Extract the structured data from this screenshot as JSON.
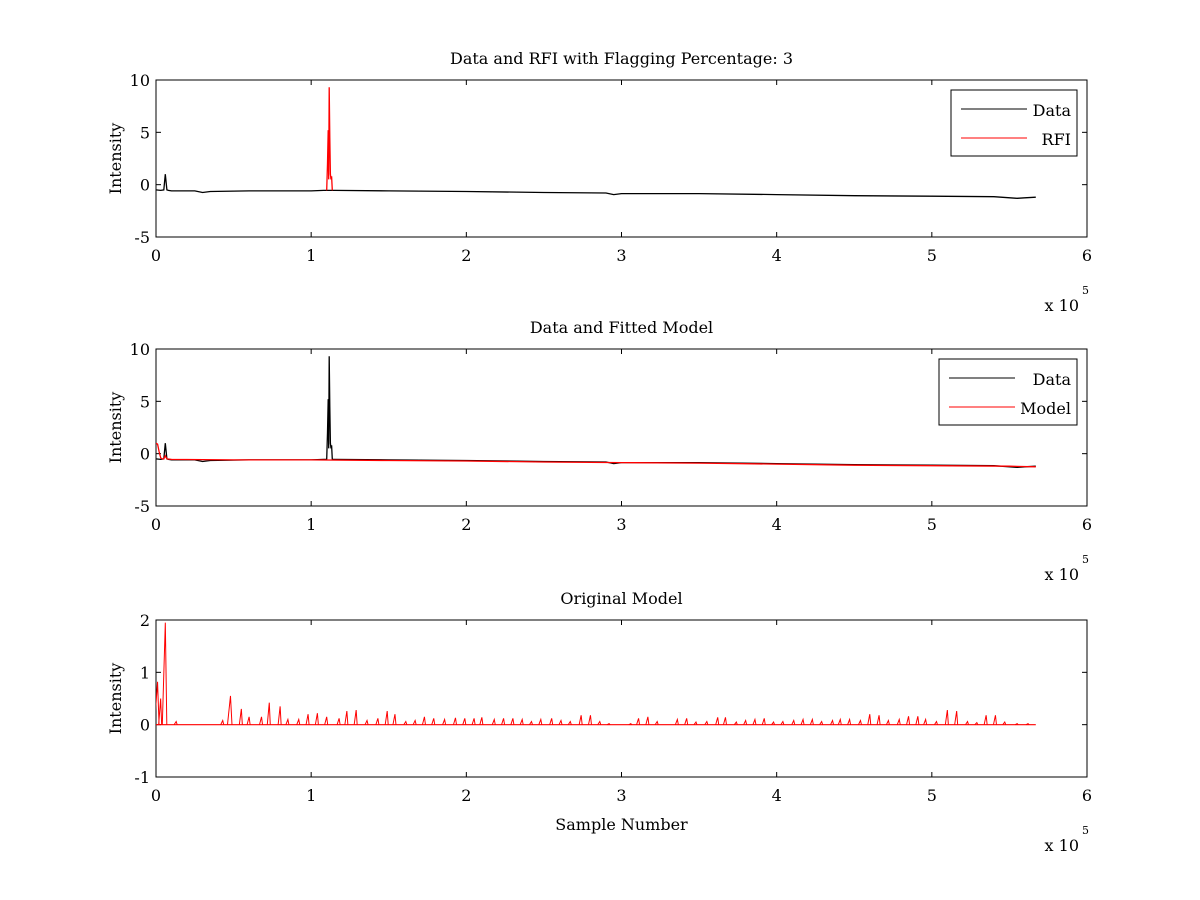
{
  "colors": {
    "data": "#000000",
    "rfi": "#ff0000",
    "model": "#ff0000",
    "axes": "#000000",
    "background": "#ffffff"
  },
  "chart_data": [
    {
      "type": "line",
      "title": "Data and RFI with Flagging Percentage: 3",
      "xlabel": "",
      "ylabel": "Intensity",
      "xlim": [
        0,
        600000
      ],
      "ylim": [
        -5,
        10
      ],
      "x_ticks": [
        0,
        1,
        2,
        3,
        4,
        5,
        6
      ],
      "y_ticks": [
        -5,
        0,
        5,
        10
      ],
      "x_exponent": {
        "base": "x 10",
        "power": "5"
      },
      "legend": {
        "position": "top-right",
        "entries": [
          "Data",
          "RFI"
        ]
      },
      "grid": false,
      "series": [
        {
          "name": "Data",
          "color": "#000000",
          "x": [
            0,
            3000,
            5000,
            6000,
            7000,
            8000,
            10000,
            25000,
            30000,
            35000,
            60000,
            100000,
            108000,
            115000,
            150000,
            200000,
            250000,
            290000,
            295000,
            300000,
            350000,
            400000,
            450000,
            500000,
            540000,
            555000,
            560000,
            567000
          ],
          "y": [
            -0.5,
            -0.55,
            -0.5,
            1.0,
            -0.5,
            -0.55,
            -0.6,
            -0.6,
            -0.75,
            -0.65,
            -0.6,
            -0.6,
            -0.55,
            -0.55,
            -0.6,
            -0.65,
            -0.75,
            -0.8,
            -0.95,
            -0.85,
            -0.85,
            -0.95,
            -1.05,
            -1.1,
            -1.15,
            -1.3,
            -1.25,
            -1.2
          ]
        },
        {
          "name": "RFI",
          "color": "#ff0000",
          "x": [
            110000,
            110500,
            111000,
            111300,
            111600,
            112000,
            112400,
            112800,
            113200,
            113600
          ],
          "y": [
            -0.55,
            2.0,
            5.2,
            0.5,
            9.3,
            4.5,
            1.0,
            0.5,
            0.8,
            -0.55
          ]
        }
      ]
    },
    {
      "type": "line",
      "title": "Data and Fitted Model",
      "xlabel": "",
      "ylabel": "Intensity",
      "xlim": [
        0,
        600000
      ],
      "ylim": [
        -5,
        10
      ],
      "x_ticks": [
        0,
        1,
        2,
        3,
        4,
        5,
        6
      ],
      "y_ticks": [
        -5,
        0,
        5,
        10
      ],
      "x_exponent": {
        "base": "x 10",
        "power": "5"
      },
      "legend": {
        "position": "top-right",
        "entries": [
          "Data",
          "Model"
        ]
      },
      "grid": false,
      "series": [
        {
          "name": "Data",
          "color": "#000000",
          "x": [
            0,
            3000,
            5000,
            6000,
            7000,
            8000,
            10000,
            25000,
            30000,
            35000,
            60000,
            100000,
            108000,
            110000,
            110500,
            111000,
            111300,
            111600,
            112000,
            112400,
            112800,
            113200,
            113600,
            115000,
            150000,
            200000,
            250000,
            290000,
            295000,
            300000,
            350000,
            400000,
            450000,
            500000,
            540000,
            555000,
            560000,
            567000
          ],
          "y": [
            -0.5,
            -0.55,
            -0.5,
            1.0,
            -0.5,
            -0.55,
            -0.6,
            -0.6,
            -0.75,
            -0.65,
            -0.6,
            -0.6,
            -0.55,
            -0.55,
            2.0,
            5.2,
            0.5,
            9.3,
            4.5,
            1.0,
            0.5,
            0.8,
            -0.55,
            -0.55,
            -0.6,
            -0.65,
            -0.75,
            -0.8,
            -0.95,
            -0.85,
            -0.85,
            -0.95,
            -1.05,
            -1.1,
            -1.15,
            -1.3,
            -1.25,
            -1.2
          ]
        },
        {
          "name": "Model",
          "color": "#ff0000",
          "x": [
            0,
            1000,
            2000,
            3000,
            4000,
            5000,
            6000,
            7000,
            10000,
            50000,
            100000,
            150000,
            200000,
            250000,
            300000,
            350000,
            400000,
            450000,
            500000,
            550000,
            567000
          ],
          "y": [
            1.0,
            0.9,
            0.2,
            -0.4,
            -0.5,
            -0.5,
            -0.2,
            -0.5,
            -0.55,
            -0.6,
            -0.6,
            -0.65,
            -0.7,
            -0.8,
            -0.85,
            -0.9,
            -1.0,
            -1.1,
            -1.15,
            -1.2,
            -1.25
          ]
        }
      ]
    },
    {
      "type": "line",
      "title": "Original Model",
      "xlabel": "Sample Number",
      "ylabel": "Intensity",
      "xlim": [
        0,
        600000
      ],
      "ylim": [
        -1,
        2
      ],
      "x_ticks": [
        0,
        1,
        2,
        3,
        4,
        5,
        6
      ],
      "y_ticks": [
        -1,
        0,
        1,
        2
      ],
      "x_exponent": {
        "base": "x 10",
        "power": "5"
      },
      "legend": null,
      "grid": false,
      "baseline": 0,
      "series": [
        {
          "color": "#ff0000",
          "style": "spikes",
          "spikes": [
            [
              1000,
              0.82
            ],
            [
              3000,
              0.5
            ],
            [
              6000,
              1.95
            ],
            [
              13000,
              0.06
            ],
            [
              43000,
              0.08
            ],
            [
              48000,
              0.55
            ],
            [
              55000,
              0.3
            ],
            [
              60000,
              0.15
            ],
            [
              68000,
              0.15
            ],
            [
              73000,
              0.42
            ],
            [
              80000,
              0.35
            ],
            [
              85000,
              0.1
            ],
            [
              92000,
              0.1
            ],
            [
              98000,
              0.2
            ],
            [
              104000,
              0.22
            ],
            [
              110000,
              0.15
            ],
            [
              118000,
              0.12
            ],
            [
              123000,
              0.26
            ],
            [
              129000,
              0.28
            ],
            [
              136000,
              0.08
            ],
            [
              143000,
              0.12
            ],
            [
              149000,
              0.26
            ],
            [
              154000,
              0.2
            ],
            [
              161000,
              0.06
            ],
            [
              167000,
              0.08
            ],
            [
              173000,
              0.15
            ],
            [
              179000,
              0.12
            ],
            [
              186000,
              0.1
            ],
            [
              193000,
              0.13
            ],
            [
              199000,
              0.12
            ],
            [
              205000,
              0.12
            ],
            [
              210000,
              0.14
            ],
            [
              218000,
              0.1
            ],
            [
              224000,
              0.12
            ],
            [
              230000,
              0.12
            ],
            [
              236000,
              0.1
            ],
            [
              242000,
              0.06
            ],
            [
              248000,
              0.1
            ],
            [
              255000,
              0.12
            ],
            [
              261000,
              0.08
            ],
            [
              267000,
              0.06
            ],
            [
              274000,
              0.18
            ],
            [
              280000,
              0.18
            ],
            [
              286000,
              0.06
            ],
            [
              292000,
              0.02
            ],
            [
              306000,
              0.02
            ],
            [
              311000,
              0.12
            ],
            [
              317000,
              0.15
            ],
            [
              323000,
              0.06
            ],
            [
              336000,
              0.1
            ],
            [
              342000,
              0.12
            ],
            [
              348000,
              0.05
            ],
            [
              355000,
              0.06
            ],
            [
              362000,
              0.14
            ],
            [
              367000,
              0.14
            ],
            [
              374000,
              0.05
            ],
            [
              380000,
              0.08
            ],
            [
              386000,
              0.1
            ],
            [
              392000,
              0.12
            ],
            [
              398000,
              0.05
            ],
            [
              404000,
              0.06
            ],
            [
              411000,
              0.08
            ],
            [
              417000,
              0.1
            ],
            [
              423000,
              0.1
            ],
            [
              429000,
              0.06
            ],
            [
              436000,
              0.08
            ],
            [
              441000,
              0.1
            ],
            [
              447000,
              0.1
            ],
            [
              454000,
              0.08
            ],
            [
              460000,
              0.2
            ],
            [
              466000,
              0.18
            ],
            [
              472000,
              0.08
            ],
            [
              479000,
              0.1
            ],
            [
              485000,
              0.16
            ],
            [
              491000,
              0.16
            ],
            [
              496000,
              0.1
            ],
            [
              503000,
              0.06
            ],
            [
              510000,
              0.28
            ],
            [
              516000,
              0.26
            ],
            [
              523000,
              0.06
            ],
            [
              529000,
              0.04
            ],
            [
              535000,
              0.18
            ],
            [
              541000,
              0.18
            ],
            [
              547000,
              0.05
            ],
            [
              555000,
              0.02
            ],
            [
              562000,
              0.02
            ]
          ]
        }
      ]
    }
  ]
}
